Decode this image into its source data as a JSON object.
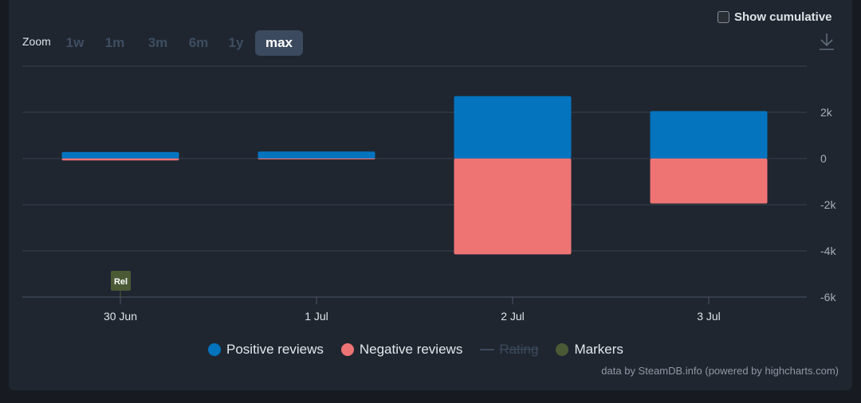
{
  "controls": {
    "show_cumulative_label": "Show cumulative",
    "zoom_label": "Zoom",
    "zoom_options": [
      "1w",
      "1m",
      "3m",
      "6m",
      "1y",
      "max"
    ],
    "zoom_active": "max"
  },
  "legend": {
    "positive": "Positive reviews",
    "negative": "Negative reviews",
    "rating": "Rating",
    "markers": "Markers"
  },
  "credits": "data by SteamDB.info (powered by highcharts.com)",
  "marker": {
    "label": "Rel",
    "x": "30 Jun"
  },
  "colors": {
    "positive": "#0474bf",
    "negative": "#ee7474",
    "marker": "#4a5a35",
    "disabled": "#3c4a5c"
  },
  "chart_data": {
    "type": "bar",
    "categories": [
      "30 Jun",
      "1 Jul",
      "2 Jul",
      "3 Jul"
    ],
    "series": [
      {
        "name": "Positive reviews",
        "values": [
          280,
          300,
          2700,
          2050
        ]
      },
      {
        "name": "Negative reviews",
        "values": [
          -80,
          -40,
          -4150,
          -1950
        ]
      }
    ],
    "y_ticks": [
      2000,
      0,
      -2000,
      -4000,
      -6000
    ],
    "y_tick_labels": [
      "2k",
      "0",
      "-2k",
      "-4k",
      "-6k"
    ],
    "ylim": [
      -6000,
      4000
    ],
    "y_axis_side": "right",
    "grid": true,
    "legend_position": "bottom"
  }
}
